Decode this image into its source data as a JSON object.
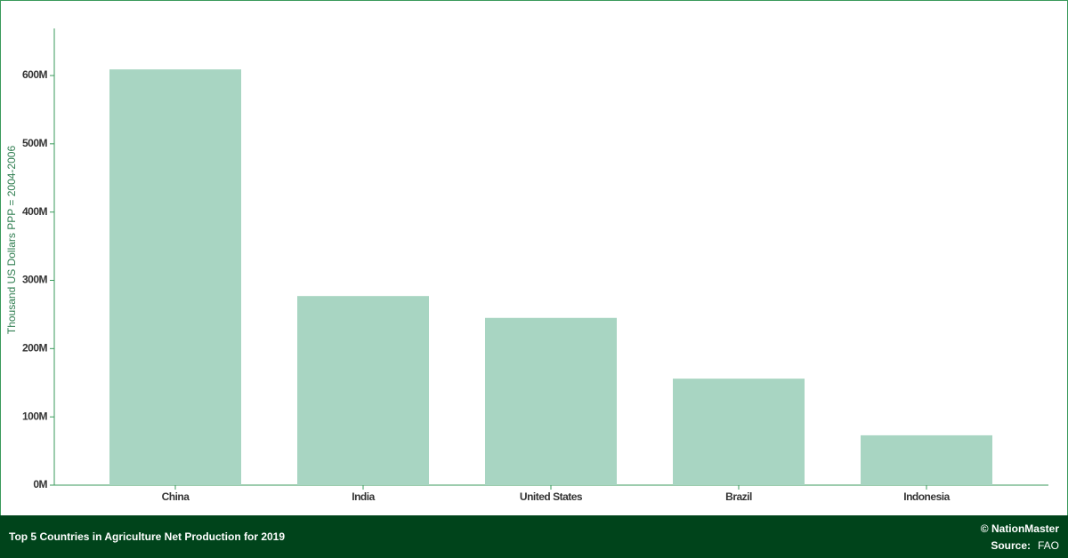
{
  "chart_data": {
    "type": "bar",
    "y_axis_label": "Thousand US Dollars PPP = 2004-2006",
    "categories": [
      "China",
      "India",
      "United States",
      "Brazil",
      "Indonesia"
    ],
    "values": [
      609000000,
      277000000,
      245000000,
      156000000,
      73000000
    ],
    "color": "#a8d5c2",
    "ylim": [
      0,
      669000000
    ],
    "yticks": [
      {
        "value": 0,
        "label": "0M"
      },
      {
        "value": 100000000,
        "label": "100M"
      },
      {
        "value": 200000000,
        "label": "200M"
      },
      {
        "value": 300000000,
        "label": "300M"
      },
      {
        "value": 400000000,
        "label": "400M"
      },
      {
        "value": 500000000,
        "label": "500M"
      },
      {
        "value": 600000000,
        "label": "600M"
      }
    ]
  },
  "footer": {
    "title": "Top 5 Countries in Agriculture Net Production for 2019",
    "brand": "© NationMaster",
    "source_label": "Source:",
    "source": "FAO"
  }
}
